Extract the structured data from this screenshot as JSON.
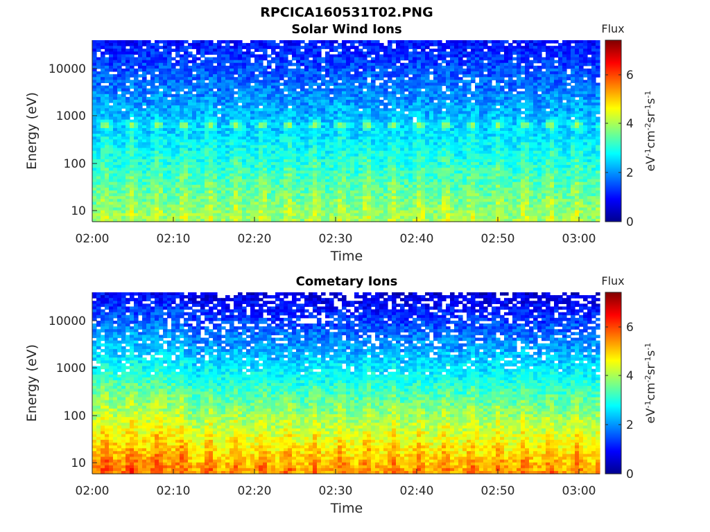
{
  "title": "RPCICA160531T02.PNG",
  "chart_data": [
    {
      "type": "heatmap",
      "title": "Solar Wind Ions",
      "xlabel": "Time",
      "ylabel": "Energy (eV)",
      "x_ticks": [
        "02:00",
        "02:10",
        "02:20",
        "02:30",
        "02:40",
        "02:50",
        "03:00"
      ],
      "xlim": [
        "02:00",
        "03:02"
      ],
      "y_scale": "log",
      "y_ticks": [
        "10",
        "100",
        "1000",
        "10000"
      ],
      "ylim": [
        6,
        40000
      ],
      "colorbar": {
        "title": "Flux",
        "label": "eV-1cm-2sr-1s-1",
        "ticks": [
          "0",
          "2",
          "4",
          "6"
        ],
        "range": [
          0,
          7.4
        ],
        "colormap": "jet"
      },
      "description_values": {
        "band_peak_energy_eV": 650,
        "band_peak_flux_log": 4.4,
        "pulse_period_minutes": 3.2,
        "low_energy_flux_log": 3.9,
        "high_energy_flux_log": 1.0
      }
    },
    {
      "type": "heatmap",
      "title": "Cometary Ions",
      "xlabel": "Time",
      "ylabel": "Energy (eV)",
      "x_ticks": [
        "02:00",
        "02:10",
        "02:20",
        "02:30",
        "02:40",
        "02:50",
        "03:00"
      ],
      "xlim": [
        "02:00",
        "03:02"
      ],
      "y_scale": "log",
      "y_ticks": [
        "10",
        "100",
        "1000",
        "10000"
      ],
      "ylim": [
        6,
        40000
      ],
      "colorbar": {
        "title": "Flux",
        "label": "eV-1cm-2sr-1s-1",
        "ticks": [
          "0",
          "2",
          "4",
          "6"
        ],
        "range": [
          0,
          7.4
        ],
        "colormap": "jet"
      },
      "description_values": {
        "band_peak_energy_eV": 650,
        "band_peak_flux_log": 2.9,
        "pulse_period_minutes": 3.2,
        "low_energy_flux_log": 5.3,
        "high_energy_flux_log": 0.6
      }
    }
  ]
}
